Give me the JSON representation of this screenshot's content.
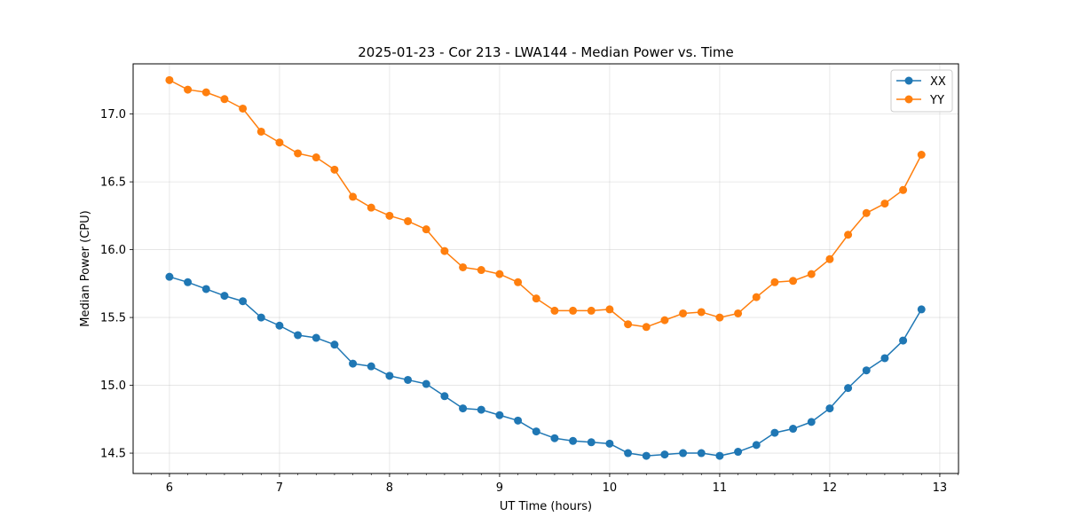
{
  "chart_data": {
    "type": "line",
    "title": "2025-01-23 - Cor 213 - LWA144 - Median Power vs. Time",
    "xlabel": "UT Time (hours)",
    "ylabel": "Median Power (CPU)",
    "xlim": [
      5.67,
      13.17
    ],
    "ylim": [
      14.35,
      17.37
    ],
    "xticks": [
      6,
      7,
      8,
      9,
      10,
      11,
      12,
      13
    ],
    "xtick_labels": [
      "6",
      "7",
      "8",
      "9",
      "10",
      "11",
      "12",
      "13"
    ],
    "yticks": [
      14.5,
      15.0,
      15.5,
      16.0,
      16.5,
      17.0
    ],
    "ytick_labels": [
      "14.5",
      "15.0",
      "15.5",
      "16.0",
      "16.5",
      "17.0"
    ],
    "grid": true,
    "legend_position": "top-right",
    "x": [
      6.0,
      6.1667,
      6.3333,
      6.5,
      6.6667,
      6.8333,
      7.0,
      7.1667,
      7.3333,
      7.5,
      7.6667,
      7.8333,
      8.0,
      8.1667,
      8.3333,
      8.5,
      8.6667,
      8.8333,
      9.0,
      9.1667,
      9.3333,
      9.5,
      9.6667,
      9.8333,
      10.0,
      10.1667,
      10.3333,
      10.5,
      10.6667,
      10.8333,
      11.0,
      11.1667,
      11.3333,
      11.5,
      11.6667,
      11.8333,
      12.0,
      12.1667,
      12.3333,
      12.5,
      12.6667,
      12.8333
    ],
    "series": [
      {
        "name": "XX",
        "color": "#1f77b4",
        "values": [
          15.8,
          15.76,
          15.71,
          15.66,
          15.62,
          15.5,
          15.44,
          15.37,
          15.35,
          15.3,
          15.16,
          15.14,
          15.07,
          15.04,
          15.01,
          14.92,
          14.83,
          14.82,
          14.78,
          14.74,
          14.66,
          14.61,
          14.59,
          14.58,
          14.57,
          14.5,
          14.48,
          14.49,
          14.5,
          14.5,
          14.48,
          14.51,
          14.56,
          14.65,
          14.68,
          14.73,
          14.83,
          14.98,
          15.11,
          15.2,
          15.33,
          15.56
        ]
      },
      {
        "name": "YY",
        "color": "#ff7f0e",
        "values": [
          17.25,
          17.18,
          17.16,
          17.11,
          17.04,
          16.87,
          16.79,
          16.71,
          16.68,
          16.59,
          16.39,
          16.31,
          16.25,
          16.21,
          16.15,
          15.99,
          15.87,
          15.85,
          15.82,
          15.76,
          15.64,
          15.55,
          15.55,
          15.55,
          15.56,
          15.45,
          15.43,
          15.48,
          15.53,
          15.54,
          15.5,
          15.53,
          15.65,
          15.76,
          15.77,
          15.82,
          15.93,
          16.11,
          16.27,
          16.34,
          16.44,
          16.7
        ]
      }
    ]
  }
}
